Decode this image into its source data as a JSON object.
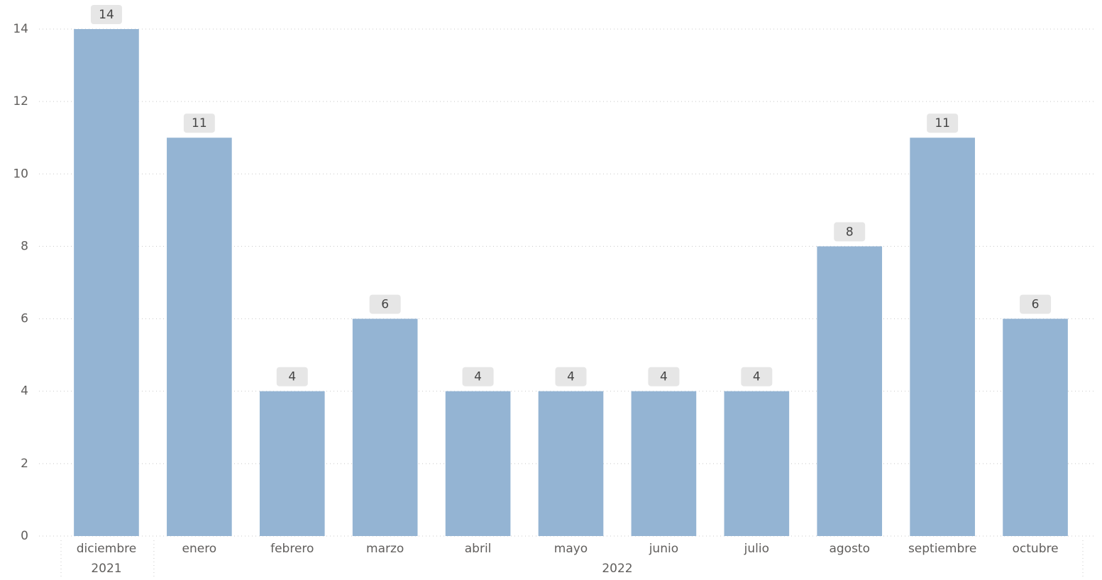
{
  "chart_data": {
    "type": "bar",
    "categories": [
      "diciembre",
      "enero",
      "febrero",
      "marzo",
      "abril",
      "mayo",
      "junio",
      "julio",
      "agosto",
      "septiembre",
      "octubre"
    ],
    "values": [
      14,
      11,
      4,
      6,
      4,
      4,
      4,
      4,
      8,
      11,
      6
    ],
    "category_groups": [
      {
        "label": "2021",
        "start": 0,
        "count": 1
      },
      {
        "label": "2022",
        "start": 1,
        "count": 10
      }
    ],
    "color": "#94b4d3",
    "ylim": [
      0,
      14
    ],
    "yticks": [
      0,
      2,
      4,
      6,
      8,
      10,
      12,
      14
    ],
    "grid": true,
    "data_labels": true
  }
}
